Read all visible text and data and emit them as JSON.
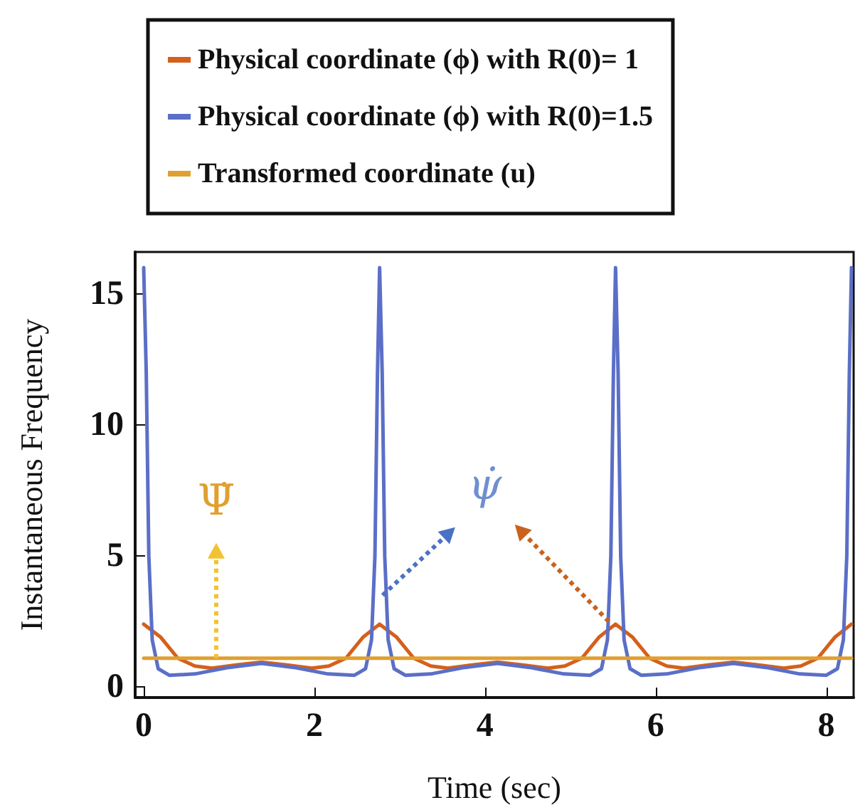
{
  "chart_data": {
    "type": "line",
    "xlabel": "Time (sec)",
    "ylabel": "Instantaneous Frequency",
    "xlim": [
      -0.1,
      8.32
    ],
    "ylim": [
      -0.4,
      16.6
    ],
    "xticks": [
      0,
      2,
      4,
      6,
      8
    ],
    "yticks": [
      0,
      5,
      10,
      15
    ],
    "grid": false,
    "legend": "top",
    "marker": "none",
    "line_style": "solid",
    "annotations": [
      "Ψ̇",
      "ψ̇"
    ],
    "series": [
      {
        "name": "Physical coordinate (ϕ) with R(0)= 1",
        "color": "#d4601c",
        "x": [
          0,
          0.2,
          0.4,
          0.6,
          0.8,
          1.1,
          1.38,
          1.66,
          1.97,
          2.17,
          2.37,
          2.57,
          2.765,
          2.965,
          3.165,
          3.365,
          3.565,
          3.865,
          4.145,
          4.425,
          4.735,
          4.935,
          5.135,
          5.335,
          5.53,
          5.73,
          5.93,
          6.13,
          6.33,
          6.63,
          6.91,
          7.19,
          7.5,
          7.7,
          7.9,
          8.1,
          8.295
        ],
        "values": [
          2.4,
          1.9,
          1.1,
          0.8,
          0.72,
          0.85,
          0.95,
          0.85,
          0.72,
          0.8,
          1.1,
          1.9,
          2.4,
          1.9,
          1.1,
          0.8,
          0.72,
          0.85,
          0.95,
          0.85,
          0.72,
          0.8,
          1.1,
          1.9,
          2.4,
          1.9,
          1.1,
          0.8,
          0.72,
          0.85,
          0.95,
          0.85,
          0.72,
          0.8,
          1.1,
          1.9,
          2.4
        ]
      },
      {
        "name": "Physical coordinate (ϕ) with R(0)=1.5",
        "color": "#5b6fc7",
        "x": [
          0,
          0.03,
          0.06,
          0.1,
          0.17,
          0.3,
          0.6,
          1.0,
          1.38,
          1.76,
          2.16,
          2.47,
          2.6,
          2.67,
          2.71,
          2.74,
          2.765,
          2.795,
          2.825,
          2.865,
          2.935,
          3.065,
          3.365,
          3.765,
          4.145,
          4.525,
          4.925,
          5.235,
          5.365,
          5.435,
          5.475,
          5.505,
          5.53,
          5.56,
          5.59,
          5.63,
          5.7,
          5.83,
          6.13,
          6.53,
          6.91,
          7.29,
          7.69,
          8.0,
          8.13,
          8.2,
          8.24,
          8.27,
          8.295
        ],
        "values": [
          16,
          12,
          5,
          1.8,
          0.7,
          0.45,
          0.5,
          0.75,
          0.9,
          0.75,
          0.5,
          0.45,
          0.7,
          1.8,
          5,
          12,
          16,
          12,
          5,
          1.8,
          0.7,
          0.45,
          0.5,
          0.75,
          0.9,
          0.75,
          0.5,
          0.45,
          0.7,
          1.8,
          5,
          12,
          16,
          12,
          5,
          1.8,
          0.7,
          0.45,
          0.5,
          0.75,
          0.9,
          0.75,
          0.5,
          0.45,
          0.7,
          1.8,
          5,
          12,
          16
        ]
      },
      {
        "name": "Transformed coordinate (u)",
        "color": "#e0a030",
        "x": [
          0,
          8.295
        ],
        "values": [
          1.1,
          1.1
        ]
      }
    ]
  }
}
